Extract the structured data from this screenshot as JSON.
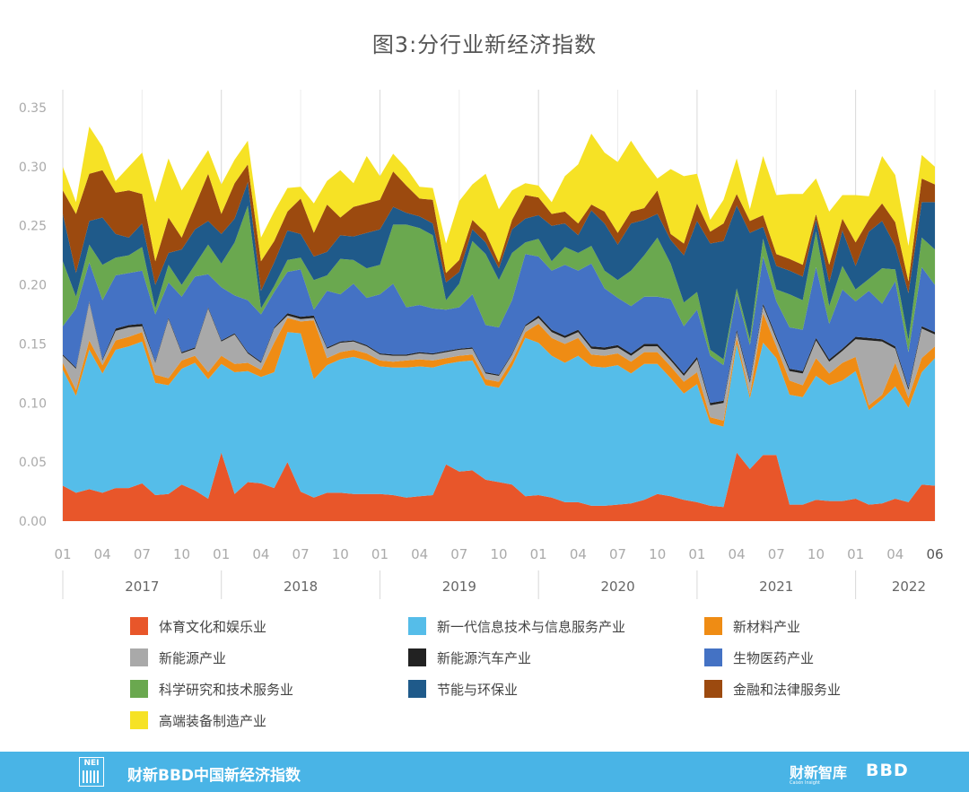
{
  "title": "图3:分行业新经济指数",
  "footer": {
    "logo_text": "NEI",
    "title": "财新BBD中国新经济指数",
    "brand_primary": "财新智库",
    "brand_primary_sub": "Caixin Insight",
    "brand_secondary": "BBD"
  },
  "chart_data": {
    "type": "area",
    "stacked": true,
    "title": "图3:分行业新经济指数",
    "xlabel": "",
    "ylabel": "",
    "ylim": [
      0,
      0.35
    ],
    "yticks": [
      0.0,
      0.05,
      0.1,
      0.15,
      0.2,
      0.25,
      0.3,
      0.35
    ],
    "ytick_labels": [
      "0.00",
      "0.05",
      "0.10",
      "0.15",
      "0.20",
      "0.25",
      "0.30",
      "0.35"
    ],
    "grid": "vertical",
    "legend_position": "bottom",
    "x_start": "2017-01",
    "x_end": "2022-06",
    "month_ticks": [
      "01",
      "04",
      "07",
      "10",
      "01",
      "04",
      "07",
      "10",
      "01",
      "04",
      "07",
      "10",
      "01",
      "04",
      "07",
      "10",
      "01",
      "04",
      "07",
      "10",
      "01",
      "04",
      "06"
    ],
    "years": [
      "2017",
      "2018",
      "2019",
      "2020",
      "2021",
      "2022"
    ],
    "series": [
      {
        "name": "体育文化和娱乐业",
        "color": "#e8562a",
        "values": [
          0.03,
          0.024,
          0.027,
          0.024,
          0.028,
          0.028,
          0.032,
          0.022,
          0.023,
          0.031,
          0.026,
          0.019,
          0.058,
          0.023,
          0.033,
          0.032,
          0.028,
          0.05,
          0.025,
          0.02,
          0.024,
          0.024,
          0.023,
          0.023,
          0.023,
          0.022,
          0.02,
          0.021,
          0.022,
          0.048,
          0.042,
          0.043,
          0.035,
          0.033,
          0.031,
          0.021,
          0.022,
          0.02,
          0.016,
          0.016,
          0.013,
          0.013,
          0.014,
          0.015,
          0.018,
          0.023,
          0.021,
          0.018,
          0.016,
          0.013,
          0.012,
          0.058,
          0.044,
          0.056,
          0.056,
          0.014,
          0.014,
          0.018,
          0.017,
          0.017,
          0.019,
          0.014,
          0.015,
          0.019,
          0.016,
          0.031,
          0.03
        ]
      },
      {
        "name": "新一代信息技术与信息服务产业",
        "color": "#55bde9",
        "values": [
          0.098,
          0.082,
          0.118,
          0.101,
          0.117,
          0.12,
          0.12,
          0.095,
          0.092,
          0.098,
          0.108,
          0.101,
          0.075,
          0.103,
          0.094,
          0.09,
          0.098,
          0.11,
          0.134,
          0.1,
          0.108,
          0.113,
          0.116,
          0.113,
          0.108,
          0.108,
          0.11,
          0.11,
          0.108,
          0.085,
          0.093,
          0.093,
          0.08,
          0.08,
          0.1,
          0.134,
          0.129,
          0.12,
          0.118,
          0.124,
          0.118,
          0.117,
          0.118,
          0.11,
          0.115,
          0.11,
          0.1,
          0.09,
          0.1,
          0.07,
          0.068,
          0.092,
          0.06,
          0.095,
          0.082,
          0.093,
          0.091,
          0.105,
          0.098,
          0.102,
          0.108,
          0.08,
          0.088,
          0.095,
          0.08,
          0.095,
          0.108
        ]
      },
      {
        "name": "新材料产业",
        "color": "#ef8c14",
        "values": [
          0.006,
          0.005,
          0.008,
          0.007,
          0.008,
          0.008,
          0.008,
          0.007,
          0.006,
          0.007,
          0.006,
          0.006,
          0.007,
          0.007,
          0.007,
          0.006,
          0.025,
          0.012,
          0.01,
          0.05,
          0.006,
          0.006,
          0.006,
          0.006,
          0.005,
          0.005,
          0.006,
          0.006,
          0.006,
          0.005,
          0.005,
          0.005,
          0.005,
          0.005,
          0.005,
          0.005,
          0.016,
          0.015,
          0.016,
          0.015,
          0.01,
          0.01,
          0.01,
          0.01,
          0.01,
          0.01,
          0.01,
          0.01,
          0.01,
          0.005,
          0.005,
          0.005,
          0.003,
          0.025,
          0.01,
          0.012,
          0.01,
          0.015,
          0.01,
          0.015,
          0.012,
          0.004,
          0.004,
          0.02,
          0.008,
          0.012,
          0.01
        ]
      },
      {
        "name": "新能源产业",
        "color": "#a9a9a9",
        "values": [
          0.006,
          0.018,
          0.032,
          0.004,
          0.008,
          0.008,
          0.005,
          0.01,
          0.05,
          0.006,
          0.006,
          0.054,
          0.012,
          0.025,
          0.008,
          0.006,
          0.012,
          0.002,
          0.002,
          0.002,
          0.008,
          0.008,
          0.007,
          0.006,
          0.005,
          0.005,
          0.004,
          0.005,
          0.005,
          0.005,
          0.005,
          0.005,
          0.005,
          0.005,
          0.005,
          0.005,
          0.005,
          0.005,
          0.005,
          0.005,
          0.005,
          0.005,
          0.005,
          0.005,
          0.005,
          0.005,
          0.005,
          0.005,
          0.011,
          0.01,
          0.015,
          0.005,
          0.01,
          0.006,
          0.006,
          0.008,
          0.01,
          0.015,
          0.01,
          0.01,
          0.015,
          0.055,
          0.045,
          0.012,
          0.007,
          0.025,
          0.01
        ]
      },
      {
        "name": "新能源汽车产业",
        "color": "#222222",
        "values": [
          0.001,
          0.001,
          0.001,
          0.001,
          0.002,
          0.002,
          0.002,
          0.001,
          0.001,
          0.001,
          0.001,
          0.001,
          0.001,
          0.001,
          0.001,
          0.001,
          0.001,
          0.002,
          0.002,
          0.002,
          0.001,
          0.001,
          0.001,
          0.001,
          0.001,
          0.001,
          0.001,
          0.001,
          0.001,
          0.001,
          0.001,
          0.001,
          0.001,
          0.001,
          0.001,
          0.001,
          0.002,
          0.002,
          0.002,
          0.002,
          0.002,
          0.002,
          0.002,
          0.002,
          0.002,
          0.002,
          0.002,
          0.002,
          0.002,
          0.002,
          0.002,
          0.002,
          0.002,
          0.002,
          0.002,
          0.002,
          0.002,
          0.002,
          0.002,
          0.002,
          0.002,
          0.002,
          0.002,
          0.002,
          0.002,
          0.002,
          0.002
        ]
      },
      {
        "name": "生物医药产业",
        "color": "#4472c4",
        "values": [
          0.024,
          0.05,
          0.033,
          0.05,
          0.045,
          0.044,
          0.045,
          0.04,
          0.03,
          0.047,
          0.06,
          0.028,
          0.045,
          0.032,
          0.044,
          0.04,
          0.03,
          0.035,
          0.04,
          0.005,
          0.048,
          0.04,
          0.048,
          0.04,
          0.05,
          0.06,
          0.04,
          0.04,
          0.038,
          0.035,
          0.035,
          0.045,
          0.04,
          0.04,
          0.045,
          0.06,
          0.05,
          0.05,
          0.06,
          0.05,
          0.07,
          0.05,
          0.04,
          0.04,
          0.04,
          0.04,
          0.05,
          0.04,
          0.04,
          0.04,
          0.03,
          0.03,
          0.03,
          0.04,
          0.03,
          0.035,
          0.035,
          0.06,
          0.03,
          0.05,
          0.03,
          0.04,
          0.03,
          0.055,
          0.03,
          0.05,
          0.04
        ]
      },
      {
        "name": "科学研究和技术服务业",
        "color": "#6aa84f",
        "values": [
          0.055,
          0.01,
          0.015,
          0.03,
          0.015,
          0.015,
          0.02,
          0.005,
          0.015,
          0.01,
          0.01,
          0.025,
          0.02,
          0.045,
          0.08,
          0.005,
          0.005,
          0.01,
          0.01,
          0.025,
          0.013,
          0.03,
          0.02,
          0.025,
          0.025,
          0.05,
          0.07,
          0.065,
          0.062,
          0.008,
          0.02,
          0.045,
          0.06,
          0.04,
          0.04,
          0.01,
          0.015,
          0.008,
          0.015,
          0.015,
          0.015,
          0.015,
          0.015,
          0.03,
          0.035,
          0.05,
          0.03,
          0.02,
          0.015,
          0.005,
          0.005,
          0.005,
          0.005,
          0.015,
          0.01,
          0.028,
          0.025,
          0.03,
          0.015,
          0.02,
          0.01,
          0.01,
          0.03,
          0.01,
          0.01,
          0.025,
          0.03
        ]
      },
      {
        "name": "节能与环保业",
        "color": "#1f5a8a",
        "values": [
          0.04,
          0.02,
          0.02,
          0.04,
          0.02,
          0.015,
          0.02,
          0.02,
          0.01,
          0.03,
          0.03,
          0.02,
          0.025,
          0.02,
          0.02,
          0.015,
          0.02,
          0.025,
          0.02,
          0.02,
          0.02,
          0.02,
          0.02,
          0.03,
          0.03,
          0.015,
          0.01,
          0.01,
          0.01,
          0.015,
          0.01,
          0.01,
          0.01,
          0.01,
          0.02,
          0.02,
          0.02,
          0.03,
          0.02,
          0.015,
          0.03,
          0.04,
          0.03,
          0.04,
          0.03,
          0.02,
          0.02,
          0.04,
          0.06,
          0.09,
          0.1,
          0.07,
          0.09,
          0.01,
          0.02,
          0.02,
          0.02,
          0.01,
          0.02,
          0.03,
          0.02,
          0.04,
          0.04,
          0.02,
          0.04,
          0.03,
          0.04
        ]
      },
      {
        "name": "金融和法律服务业",
        "color": "#9c4a0f",
        "values": [
          0.02,
          0.05,
          0.04,
          0.04,
          0.035,
          0.04,
          0.025,
          0.02,
          0.03,
          0.01,
          0.02,
          0.04,
          0.017,
          0.03,
          0.015,
          0.025,
          0.018,
          0.016,
          0.03,
          0.02,
          0.04,
          0.015,
          0.025,
          0.025,
          0.025,
          0.03,
          0.023,
          0.015,
          0.02,
          0.008,
          0.01,
          0.008,
          0.008,
          0.005,
          0.008,
          0.02,
          0.015,
          0.01,
          0.01,
          0.01,
          0.005,
          0.01,
          0.01,
          0.01,
          0.01,
          0.02,
          0.005,
          0.01,
          0.015,
          0.01,
          0.015,
          0.01,
          0.01,
          0.01,
          0.01,
          0.01,
          0.01,
          0.005,
          0.015,
          0.01,
          0.02,
          0.01,
          0.015,
          0.02,
          0.01,
          0.02,
          0.015
        ]
      },
      {
        "name": "高端装备制造产业",
        "color": "#f6e225",
        "values": [
          0.02,
          0.01,
          0.04,
          0.02,
          0.01,
          0.02,
          0.035,
          0.05,
          0.05,
          0.04,
          0.03,
          0.02,
          0.025,
          0.02,
          0.02,
          0.02,
          0.025,
          0.02,
          0.01,
          0.025,
          0.02,
          0.04,
          0.02,
          0.04,
          0.02,
          0.015,
          0.015,
          0.01,
          0.01,
          0.025,
          0.05,
          0.03,
          0.05,
          0.045,
          0.025,
          0.01,
          0.01,
          0.01,
          0.03,
          0.05,
          0.06,
          0.05,
          0.06,
          0.06,
          0.04,
          0.01,
          0.055,
          0.057,
          0.025,
          0.01,
          0.02,
          0.03,
          0.01,
          0.05,
          0.05,
          0.055,
          0.06,
          0.03,
          0.045,
          0.02,
          0.04,
          0.02,
          0.04,
          0.04,
          0.03,
          0.02,
          0.015
        ]
      }
    ]
  }
}
